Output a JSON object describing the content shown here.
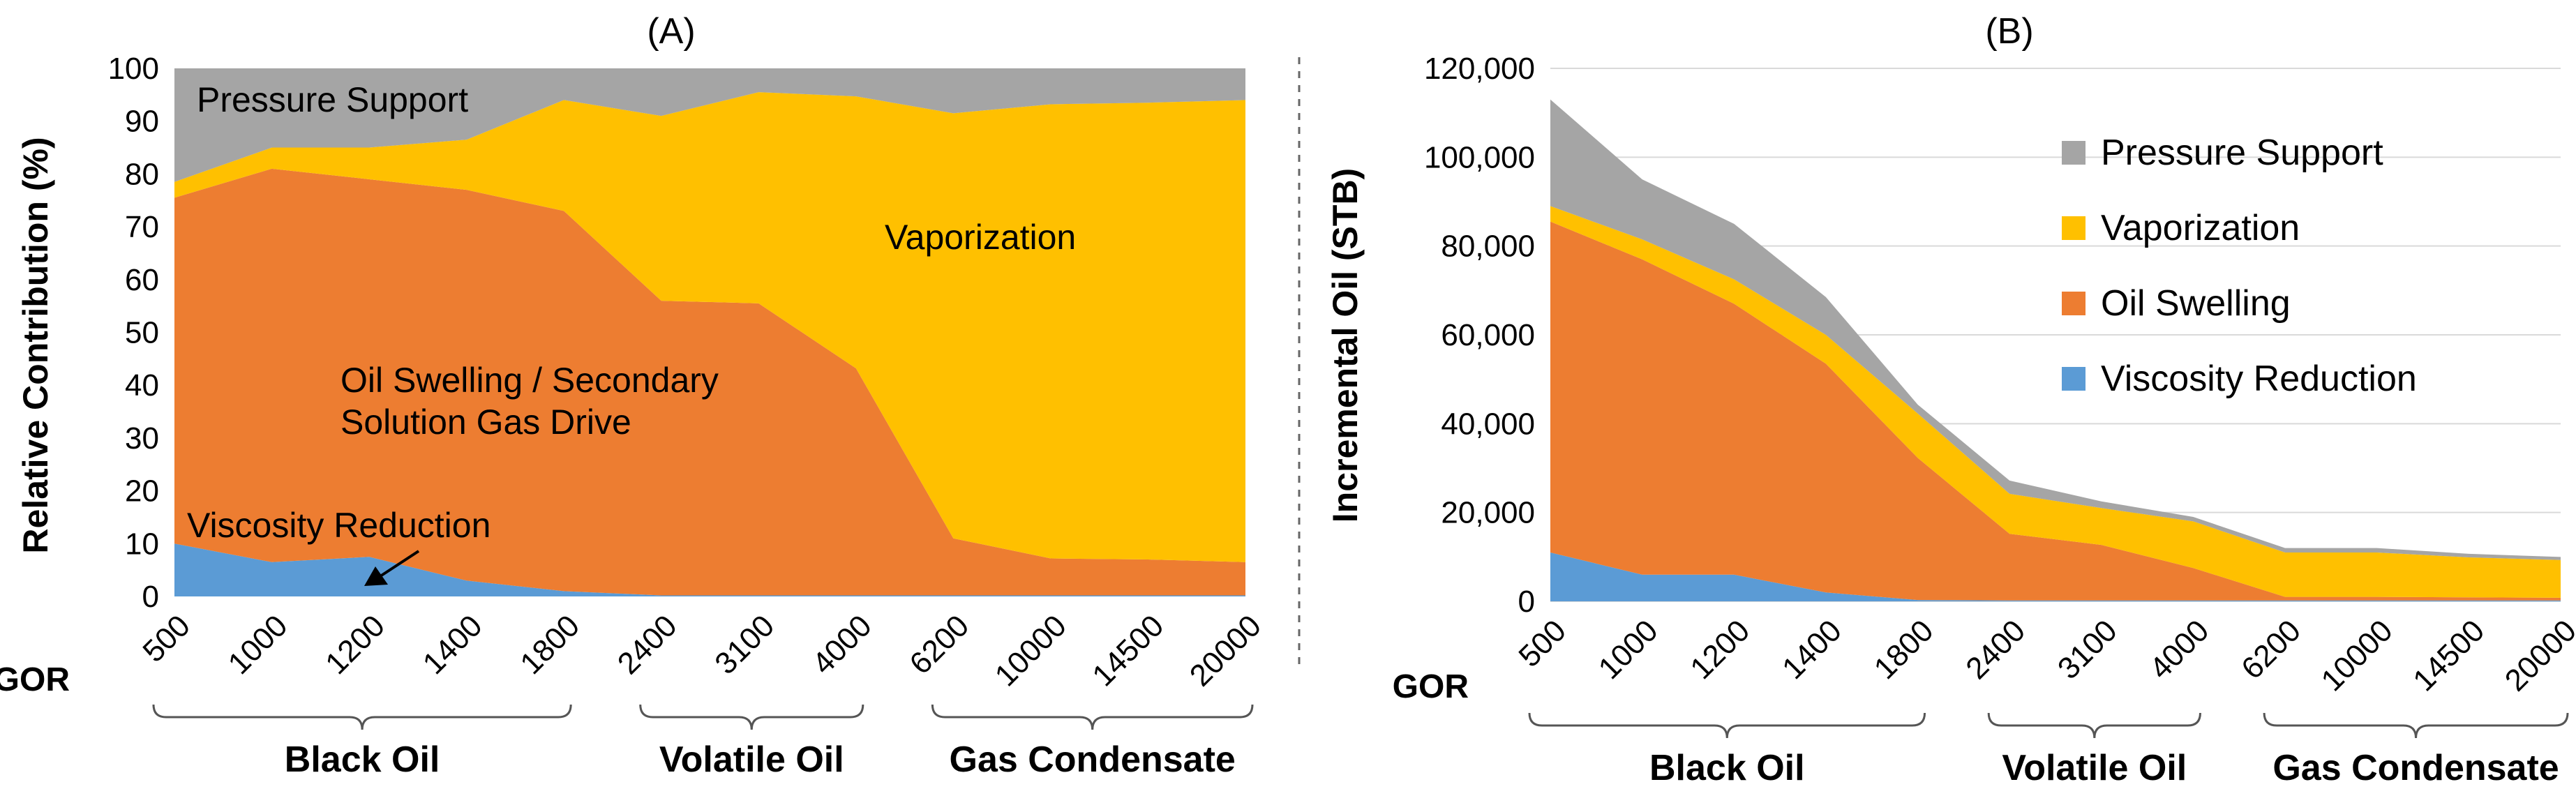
{
  "chart_data": [
    {
      "type": "area",
      "panel_label": "(A)",
      "ylabel": "Relative Contribution (%)",
      "ylim": [
        0,
        100
      ],
      "y_ticks": [
        "0",
        "10",
        "20",
        "30",
        "40",
        "50",
        "60",
        "70",
        "80",
        "90",
        "100"
      ],
      "x_prefix": "GOR",
      "categories": [
        "500",
        "1000",
        "1200",
        "1400",
        "1800",
        "2400",
        "3100",
        "4000",
        "6200",
        "10000",
        "14500",
        "20000"
      ],
      "groups": [
        {
          "name": "Black Oil",
          "from": 0,
          "to": 4
        },
        {
          "name": "Volatile Oil",
          "from": 5,
          "to": 7
        },
        {
          "name": "Gas Condensate",
          "from": 8,
          "to": 11
        }
      ],
      "stacked": true,
      "series": [
        {
          "name": "Viscosity Reduction",
          "color": "#5B9BD5",
          "values": [
            10,
            6.5,
            7.5,
            3,
            1,
            0.2,
            0.2,
            0.2,
            0.2,
            0.2,
            0.2,
            0.2
          ]
        },
        {
          "name": "Oil Swelling / Secondary Solution Gas Drive",
          "color": "#ED7D31",
          "values": [
            65.5,
            74.5,
            71.5,
            74,
            72,
            55.8,
            55.3,
            43,
            10.8,
            7,
            6.8,
            6.3
          ]
        },
        {
          "name": "Vaporization",
          "color": "#FFC000",
          "values": [
            3,
            4,
            6,
            9.5,
            21,
            35,
            40,
            51.5,
            80.5,
            86,
            86.5,
            87.5
          ]
        },
        {
          "name": "Pressure Support",
          "color": "#A5A5A5",
          "values": [
            21.5,
            15,
            15,
            13.5,
            6,
            9,
            4.5,
            5.3,
            8.5,
            6.8,
            6.5,
            6
          ]
        }
      ],
      "in_chart_labels": {
        "pressure": "Pressure Support",
        "vaporization": "Vaporization",
        "swelling_line1": "Oil Swelling / Secondary",
        "swelling_line2": "Solution Gas Drive",
        "viscosity": "Viscosity Reduction"
      }
    },
    {
      "type": "area",
      "panel_label": "(B)",
      "ylabel": "Incremental Oil (STB)",
      "ylim": [
        0,
        120000
      ],
      "y_ticks": [
        "0",
        "20,000",
        "40,000",
        "60,000",
        "80,000",
        "100,000",
        "120,000"
      ],
      "x_prefix": "GOR",
      "categories": [
        "500",
        "1000",
        "1200",
        "1400",
        "1800",
        "2400",
        "3100",
        "4000",
        "6200",
        "10000",
        "14500",
        "20000"
      ],
      "groups": [
        {
          "name": "Black Oil",
          "from": 0,
          "to": 4
        },
        {
          "name": "Volatile Oil",
          "from": 5,
          "to": 7
        },
        {
          "name": "Gas Condensate",
          "from": 8,
          "to": 11
        }
      ],
      "stacked": true,
      "legend_position": "upper-right inside plot",
      "series": [
        {
          "name": "Viscosity Reduction",
          "color": "#5B9BD5",
          "values": [
            11000,
            6000,
            6000,
            2000,
            300,
            200,
            200,
            200,
            200,
            200,
            200,
            200
          ]
        },
        {
          "name": "Oil Swelling",
          "color": "#ED7D31",
          "values": [
            74500,
            71000,
            61000,
            51500,
            32000,
            15000,
            12500,
            7300,
            800,
            800,
            700,
            600
          ]
        },
        {
          "name": "Vaporization",
          "color": "#FFC000",
          "values": [
            3500,
            4500,
            5500,
            6500,
            10000,
            9000,
            8300,
            10500,
            10000,
            10000,
            9000,
            8500
          ]
        },
        {
          "name": "Pressure Support",
          "color": "#A5A5A5",
          "values": [
            24000,
            13500,
            12500,
            8500,
            2000,
            3000,
            1500,
            1000,
            1000,
            1000,
            800,
            700
          ]
        }
      ],
      "legend": [
        "Pressure Support",
        "Vaporization",
        "Oil Swelling",
        "Viscosity Reduction"
      ]
    }
  ]
}
